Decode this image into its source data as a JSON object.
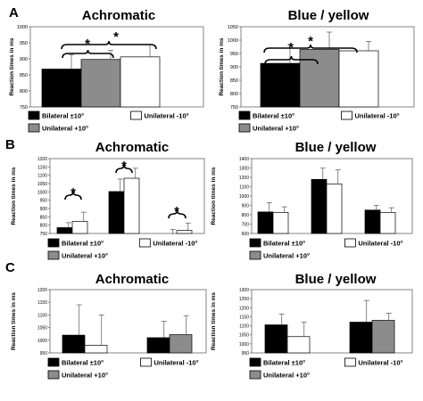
{
  "panel_letters": [
    "A",
    "B",
    "C"
  ],
  "chart_data": [
    {
      "type": "bar",
      "panel": "A",
      "title": "Achromatic",
      "ylabel": "Reaction times in ms",
      "ylim": [
        750,
        1000
      ],
      "yticks": [
        750,
        800,
        850,
        900,
        950,
        1000
      ],
      "categories": [
        ""
      ],
      "series": [
        {
          "name": "Bilateral ±10°",
          "values": [
            868
          ],
          "errors": [
            45
          ]
        },
        {
          "name": "Unilateral +10°",
          "values": [
            898
          ],
          "errors": [
            28
          ]
        },
        {
          "name": "Unilateral -10°",
          "values": [
            906
          ],
          "errors": [
            38
          ]
        }
      ],
      "annotations": [
        "*",
        "*"
      ],
      "legend": [
        "Bilateral ±10°",
        "Unilateral -10°",
        "Unilateral +10°"
      ]
    },
    {
      "type": "bar",
      "panel": "A",
      "title": "Blue / yellow",
      "ylabel": "Reaction times in ms",
      "ylim": [
        750,
        1050
      ],
      "yticks": [
        750,
        800,
        850,
        900,
        950,
        1000,
        1050
      ],
      "categories": [
        ""
      ],
      "series": [
        {
          "name": "Bilateral ±10°",
          "values": [
            913
          ],
          "errors": [
            70
          ]
        },
        {
          "name": "Unilateral +10°",
          "values": [
            965
          ],
          "errors": [
            65
          ]
        },
        {
          "name": "Unilateral -10°",
          "values": [
            960
          ],
          "errors": [
            35
          ]
        }
      ],
      "annotations": [
        "*",
        "*"
      ],
      "legend": [
        "Bilateral ±10°",
        "Unilateral -10°",
        "Unilateral +10°"
      ]
    },
    {
      "type": "bar",
      "panel": "B",
      "title": "Achromatic",
      "ylabel": "Reaction times in ms",
      "ylim": [
        750,
        1200
      ],
      "yticks": [
        750,
        800,
        850,
        900,
        950,
        1000,
        1050,
        1100,
        1150,
        1200
      ],
      "categories": [
        "",
        "",
        ""
      ],
      "series": [
        {
          "name": "Bilateral ±10°",
          "values": [
            785,
            1002,
            745
          ],
          "errors": [
            30,
            75,
            30
          ]
        },
        {
          "name": "Unilateral -10°",
          "values": [
            823,
            1082,
            768
          ],
          "errors": [
            55,
            60,
            45
          ]
        }
      ],
      "annotations": [
        "*",
        "*",
        "*"
      ],
      "legend": [
        "Bilateral ±10°",
        "Unilateral -10°",
        "Unilateral +10°"
      ]
    },
    {
      "type": "bar",
      "panel": "B",
      "title": "Blue / yellow",
      "ylabel": "Reaction times in ms",
      "ylim": [
        600,
        1400
      ],
      "yticks": [
        600,
        700,
        800,
        900,
        1000,
        1100,
        1200,
        1300,
        1400
      ],
      "categories": [
        "",
        "",
        ""
      ],
      "series": [
        {
          "name": "Bilateral ±10°",
          "values": [
            830,
            1178,
            850
          ],
          "errors": [
            100,
            120,
            50
          ]
        },
        {
          "name": "Unilateral -10°",
          "values": [
            825,
            1130,
            825
          ],
          "errors": [
            60,
            150,
            50
          ]
        }
      ],
      "annotations": [],
      "legend": [
        "Bilateral ±10°",
        "Unilateral -10°",
        "Unilateral +10°"
      ]
    },
    {
      "type": "bar",
      "panel": "C",
      "title": "Achromatic",
      "ylabel": "Reaction times in ms",
      "ylim": [
        950,
        1200
      ],
      "yticks": [
        950,
        1000,
        1050,
        1100,
        1150,
        1200
      ],
      "categories": [
        "",
        ""
      ],
      "series": [
        {
          "name": "Bilateral ±10°",
          "values": [
            1020,
            1010
          ],
          "errors": [
            120,
            65
          ]
        },
        {
          "name": "Unilateral -10°",
          "values": [
            980,
            null
          ],
          "errors": [
            120,
            null
          ]
        },
        {
          "name": "Unilateral +10°",
          "values": [
            null,
            1022
          ],
          "errors": [
            null,
            75
          ]
        }
      ],
      "annotations": [],
      "legend": [
        "Bilateral ±10°",
        "Unilateral -10°",
        "Unilateral +10°"
      ]
    },
    {
      "type": "bar",
      "panel": "C",
      "title": "Blue / yellow",
      "ylabel": "Reaction times in ms",
      "ylim": [
        950,
        1300
      ],
      "yticks": [
        950,
        1000,
        1050,
        1100,
        1150,
        1200,
        1250,
        1300
      ],
      "categories": [
        "",
        ""
      ],
      "series": [
        {
          "name": "Bilateral ±10°",
          "values": [
            1105,
            1120
          ],
          "errors": [
            60,
            120
          ]
        },
        {
          "name": "Unilateral -10°",
          "values": [
            1040,
            null
          ],
          "errors": [
            80,
            null
          ]
        },
        {
          "name": "Unilateral +10°",
          "values": [
            null,
            1130
          ],
          "errors": [
            null,
            40
          ]
        }
      ],
      "annotations": [],
      "legend": [
        "Bilateral ±10°",
        "Unilateral -10°",
        "Unilateral +10°"
      ]
    }
  ],
  "colors": {
    "Bilateral ±10°": "#000000",
    "Unilateral +10°": "#8c8c8c",
    "Unilateral -10°": "#ffffff"
  }
}
